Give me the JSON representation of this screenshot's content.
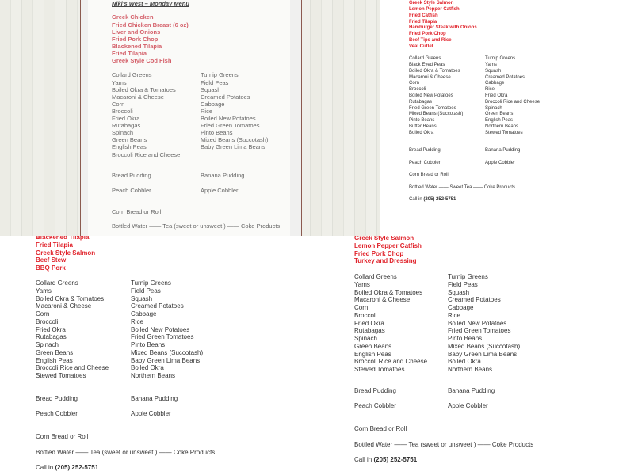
{
  "menus": [
    {
      "title": "Niki's West – Monday Menu",
      "entrees": [
        "Greek Chicken",
        "Fried Chicken Breast (6 oz)",
        "Liver and Onions",
        "Fried Pork Chop",
        "Blackened Tilapia",
        "Fried Tilapia",
        "Greek Style Cod Fish"
      ],
      "sides_left": [
        "Collard Greens",
        "Yams",
        "Boiled Okra & Tomatoes",
        "Macaroni & Cheese",
        "Corn",
        "Broccoli",
        "Fried Okra",
        "Rutabagas",
        "Spinach",
        "Green Beans",
        "English Peas",
        "Broccoli Rice and Cheese"
      ],
      "sides_right": [
        "Turnip Greens",
        "Field Peas",
        "Squash",
        "Creamed Potatoes",
        "Cabbage",
        "Rice",
        "Boiled New Potatoes",
        "Fried Green Tomatoes",
        "Pinto Beans",
        "Mixed Beans (Succotash)",
        "Baby Green Lima Beans"
      ],
      "desserts": [
        [
          "Bread Pudding",
          "Banana Pudding"
        ],
        [
          "Peach Cobbler",
          "Apple Cobbler"
        ]
      ],
      "bread": "Corn Bread or Roll",
      "drinks": "Bottled Water —— Tea (sweet or unsweet ) —— Coke Products"
    },
    {
      "entrees": [
        "Greek Style Salmon",
        "Lemon Pepper Catfish",
        "Fried Catfish",
        "Fried Tilapia",
        "Hamburger Steak with Onions",
        "Fried Pork Chop",
        "Beef Tips and Rice",
        "Veal Cutlet"
      ],
      "sides_left": [
        "Collard Greens",
        "Black Eyed Peas",
        "Boiled Okra & Tomatoes",
        "Macaroni & Cheese",
        "Corn",
        "Broccoli",
        "Boiled New Potatoes",
        "Rutabagas",
        "Fried Green Tomatoes",
        "Mixed Beans (Succotash)",
        "Pinto Beans",
        "Butter Beans",
        "Boiled Okra"
      ],
      "sides_right": [
        "Turnip Greens",
        "Yams",
        "Squash",
        "Creamed Potatoes",
        "Cabbage",
        "Rice",
        "Fried Okra",
        "Broccoli Rice and Cheese",
        "Spinach",
        "Green Beans",
        "English Peas",
        "Northern Beans",
        "Stewed Tomatoes"
      ],
      "desserts": [
        [
          "Bread Pudding",
          "Banana Pudding"
        ],
        [
          "Peach Cobbler",
          "Apple Cobbler"
        ]
      ],
      "bread": "Corn Bread or Roll",
      "drinks": "Bottled Water —— Sweet Tea —— Coke Products",
      "call_label": "Call in",
      "phone": "(205) 252-5751"
    },
    {
      "entrees": [
        "Blackened Tilapia",
        "Fried Tilapia",
        "Greek Style Salmon",
        "Beef Stew",
        "BBQ Pork"
      ],
      "sides_left": [
        "Collard Greens",
        "Yams",
        "Boiled Okra & Tomatoes",
        "Macaroni & Cheese",
        "Corn",
        "Broccoli",
        "Fried Okra",
        "Rutabagas",
        "Spinach",
        "Green Beans",
        "English Peas",
        "Broccoli Rice and Cheese",
        "Stewed Tomatoes"
      ],
      "sides_right": [
        "Turnip Greens",
        "Field Peas",
        "Squash",
        "Creamed Potatoes",
        "Cabbage",
        "Rice",
        "Boiled New Potatoes",
        "Fried Green Tomatoes",
        "Pinto Beans",
        "Mixed Beans (Succotash)",
        "Baby Green Lima Beans",
        "Boiled Okra",
        "Northern Beans"
      ],
      "desserts": [
        [
          "Bread Pudding",
          "Banana Pudding"
        ],
        [
          "Peach Cobbler",
          "Apple Cobbler"
        ]
      ],
      "bread": "Corn Bread or Roll",
      "drinks": "Bottled Water —— Tea (sweet or unsweet ) —— Coke Products",
      "call_label": "Call in",
      "phone": "(205) 252-5751"
    },
    {
      "entrees": [
        "Greek Style Salmon",
        "Lemon Pepper Catfish",
        "Fried Pork Chop",
        "Turkey and Dressing"
      ],
      "sides_left": [
        "Collard Greens",
        "Yams",
        "Boiled Okra & Tomatoes",
        "Macaroni & Cheese",
        "Corn",
        "Broccoli",
        "Fried Okra",
        "Rutabagas",
        "Spinach",
        "Green Beans",
        "English Peas",
        "Broccoli Rice and Cheese",
        "Stewed Tomatoes"
      ],
      "sides_right": [
        "Turnip Greens",
        "Field Peas",
        "Squash",
        "Creamed Potatoes",
        "Cabbage",
        "Rice",
        "Boiled New Potatoes",
        "Fried Green Tomatoes",
        "Pinto Beans",
        "Mixed Beans (Succotash)",
        "Baby Green Lima Beans",
        "Boiled Okra",
        "Northern Beans"
      ],
      "desserts": [
        [
          "Bread Pudding",
          "Banana Pudding"
        ],
        [
          "Peach Cobbler",
          "Apple Cobbler"
        ]
      ],
      "bread": "Corn Bread or Roll",
      "drinks": "Bottled Water —— Tea (sweet or unsweet ) —— Coke Products",
      "call_label": "Call in",
      "phone": "(205) 252-5751"
    }
  ],
  "colors": {
    "entree_red": "#e0232b",
    "text": "#333333",
    "page_border": "#8b5a4f"
  }
}
